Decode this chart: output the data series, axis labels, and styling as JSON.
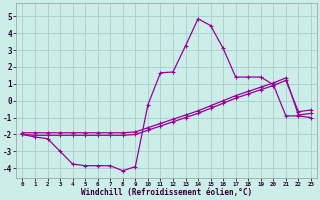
{
  "background_color": "#cceee8",
  "grid_color": "#aacccc",
  "line_color": "#990099",
  "xlabel": "Windchill (Refroidissement éolien,°C)",
  "xlim_min": -0.5,
  "xlim_max": 23.5,
  "ylim_min": -4.6,
  "ylim_max": 5.8,
  "xticks": [
    0,
    1,
    2,
    3,
    4,
    5,
    6,
    7,
    8,
    9,
    10,
    11,
    12,
    13,
    14,
    15,
    16,
    17,
    18,
    19,
    20,
    21,
    22,
    23
  ],
  "yticks": [
    -4,
    -3,
    -2,
    -1,
    0,
    1,
    2,
    3,
    4,
    5
  ],
  "line1_x": [
    0,
    1,
    2,
    3,
    4,
    5,
    6,
    7,
    8,
    9,
    10,
    11,
    12,
    13,
    14,
    15,
    16,
    17,
    18,
    19,
    20,
    21,
    22,
    23
  ],
  "line1_y": [
    -2.0,
    -2.15,
    -2.25,
    -3.0,
    -3.75,
    -3.85,
    -3.85,
    -3.85,
    -4.15,
    -3.9,
    -0.25,
    1.65,
    1.7,
    3.25,
    4.85,
    4.45,
    3.1,
    1.4,
    1.4,
    1.4,
    0.95,
    -0.9,
    -0.9,
    -1.0
  ],
  "line2_x": [
    0,
    1,
    2,
    3,
    4,
    5,
    6,
    7,
    8,
    9,
    10,
    11,
    12,
    13,
    14,
    15,
    16,
    17,
    18,
    19,
    20,
    21,
    22,
    23
  ],
  "line2_y": [
    -1.9,
    -1.9,
    -1.9,
    -1.9,
    -1.9,
    -1.9,
    -1.9,
    -1.9,
    -1.9,
    -1.85,
    -1.6,
    -1.35,
    -1.1,
    -0.85,
    -0.6,
    -0.3,
    0.0,
    0.3,
    0.55,
    0.8,
    1.05,
    1.35,
    -0.85,
    -0.75
  ],
  "line3_x": [
    0,
    1,
    2,
    3,
    4,
    5,
    6,
    7,
    8,
    9,
    10,
    11,
    12,
    13,
    14,
    15,
    16,
    17,
    18,
    19,
    20,
    21,
    22,
    23
  ],
  "line3_y": [
    -2.0,
    -2.05,
    -2.05,
    -2.05,
    -2.05,
    -2.05,
    -2.05,
    -2.05,
    -2.05,
    -2.0,
    -1.75,
    -1.5,
    -1.25,
    -1.0,
    -0.75,
    -0.45,
    -0.15,
    0.15,
    0.4,
    0.65,
    0.9,
    1.2,
    -0.65,
    -0.55
  ]
}
